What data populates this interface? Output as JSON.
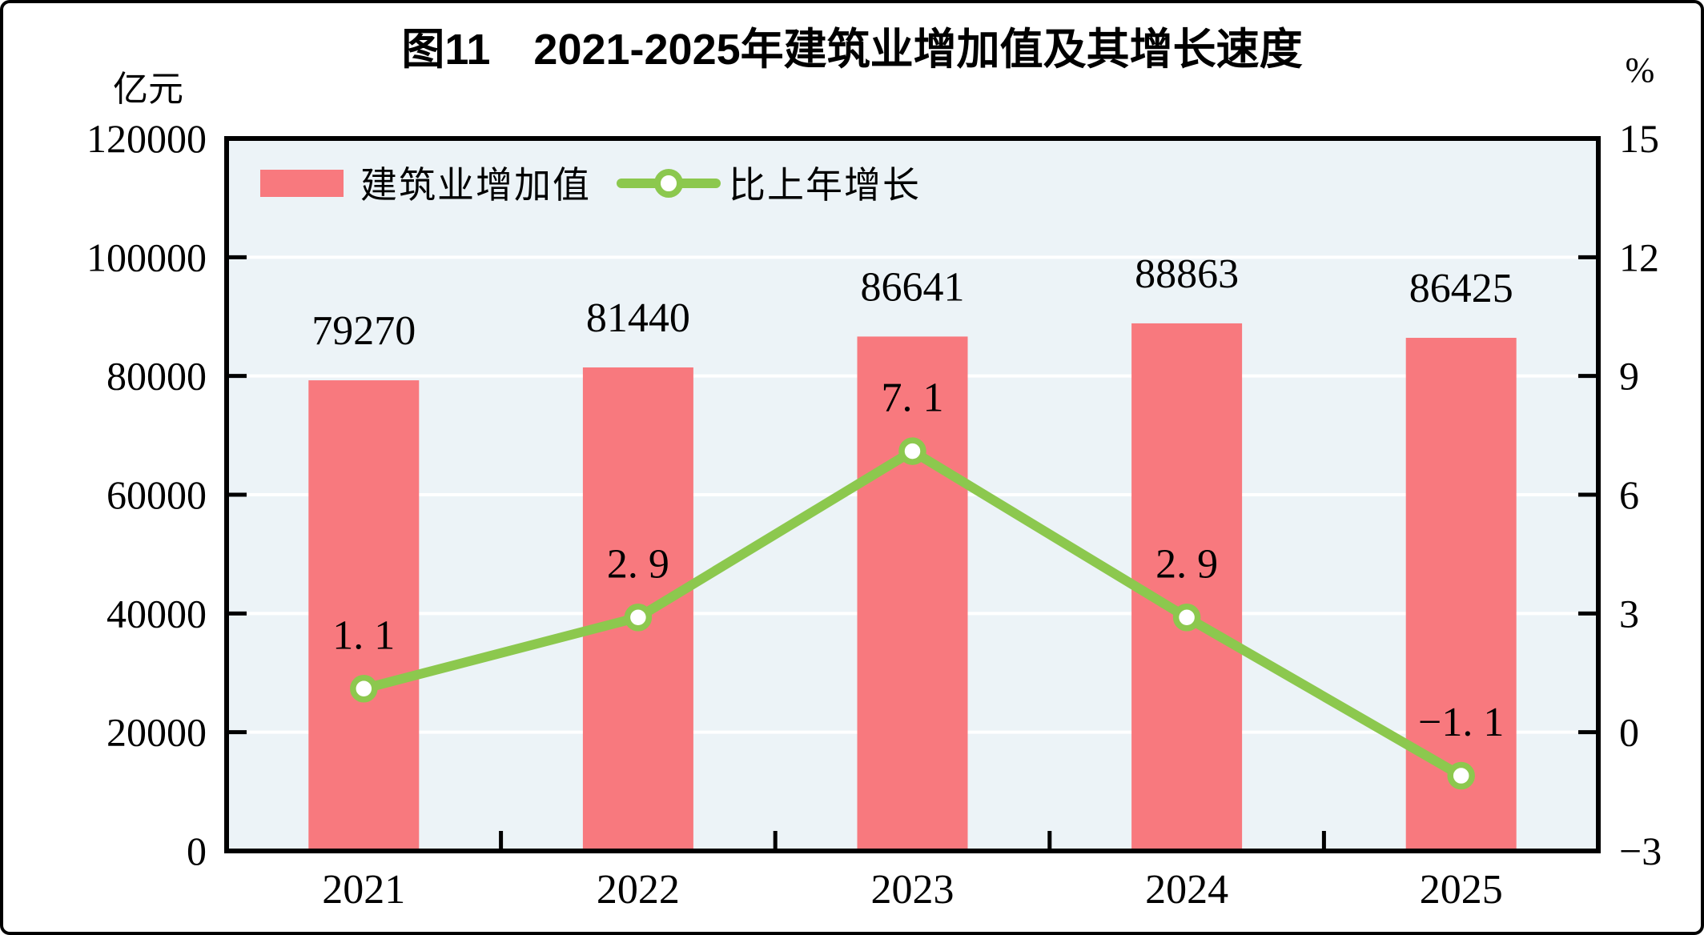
{
  "chart_data": {
    "type": "bar+line",
    "title": "图11　2021-2025年建筑业增加值及其增长速度",
    "categories": [
      "2021",
      "2022",
      "2023",
      "2024",
      "2025"
    ],
    "series": [
      {
        "name": "建筑业增加值",
        "type": "bar",
        "axis": "left",
        "values": [
          79270,
          81440,
          86641,
          88863,
          86425
        ],
        "labels": [
          "79270",
          "81440",
          "86641",
          "88863",
          "86425"
        ],
        "color": "#F8797E"
      },
      {
        "name": "比上年增长",
        "type": "line",
        "axis": "right",
        "values": [
          1.1,
          2.9,
          7.1,
          2.9,
          -1.1
        ],
        "labels": [
          "1. 1",
          "2. 9",
          "7. 1",
          "2. 9",
          "−1. 1"
        ],
        "color": "#8CC84E",
        "marker": "circle-white-fill"
      }
    ],
    "left_axis": {
      "unit": "亿元",
      "min": 0,
      "max": 120000,
      "step": 20000,
      "tick_labels": [
        "0",
        "20000",
        "40000",
        "60000",
        "80000",
        "100000",
        "120000"
      ]
    },
    "right_axis": {
      "unit": "%",
      "min": -3,
      "max": 15,
      "step": 3,
      "tick_labels": [
        "−3",
        "0",
        "3",
        "6",
        "9",
        "12",
        "15"
      ]
    },
    "legend_position": "top-left-inside",
    "grid": "horizontal-white",
    "plot_background": "#ECF3F7",
    "axis_border_color": "#000000",
    "text_color": "#000000"
  }
}
